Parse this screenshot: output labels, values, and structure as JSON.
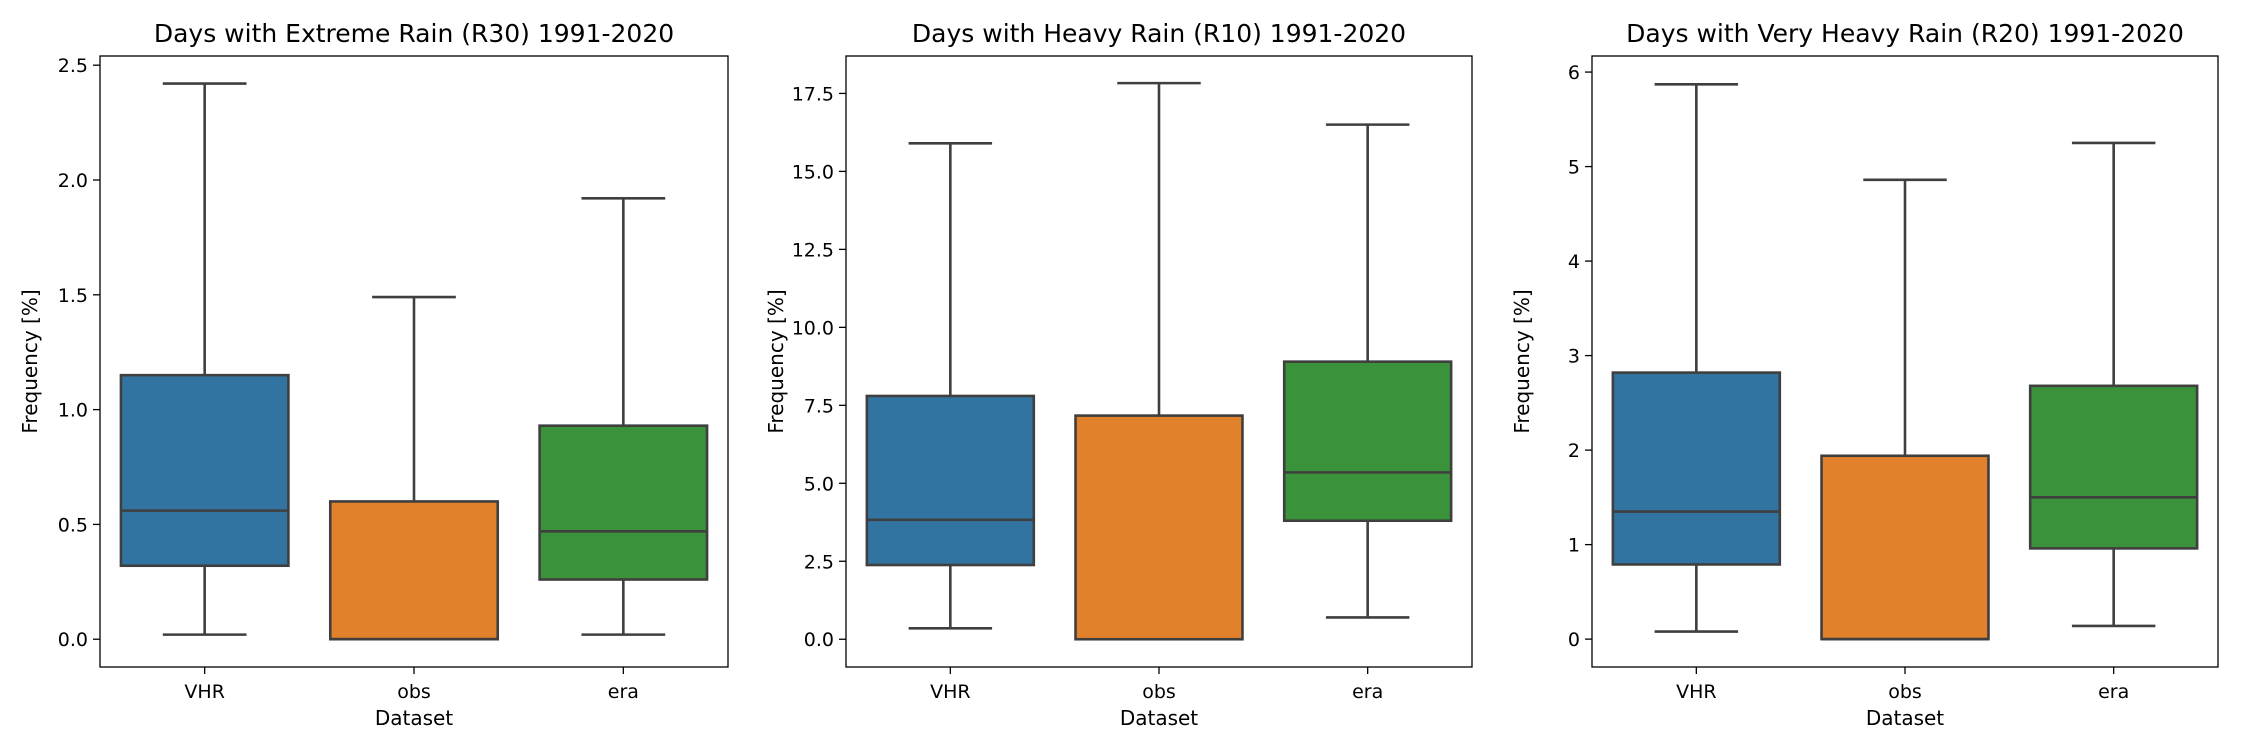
{
  "chart_data": [
    {
      "type": "box",
      "title": "Days with Extreme Rain (R30) 1991-2020",
      "xlabel": "Dataset",
      "ylabel": "Frequency [%]",
      "categories": [
        "VHR",
        "obs",
        "era"
      ],
      "colors": [
        "#3274a1",
        "#e1812c",
        "#3a923a"
      ],
      "ylim": [
        -0.121,
        2.54
      ],
      "yticks": [
        0.0,
        0.5,
        1.0,
        1.5,
        2.0,
        2.5
      ],
      "ytick_labels": [
        "0.0",
        "0.5",
        "1.0",
        "1.5",
        "2.0",
        "2.5"
      ],
      "boxes": [
        {
          "whislo": 0.02,
          "q1": 0.32,
          "med": 0.56,
          "q3": 1.15,
          "whishi": 2.42
        },
        {
          "whislo": 0.0,
          "q1": 0.0,
          "med": 0.0,
          "q3": 0.6,
          "whishi": 1.49
        },
        {
          "whislo": 0.02,
          "q1": 0.26,
          "med": 0.47,
          "q3": 0.93,
          "whishi": 1.92
        }
      ]
    },
    {
      "type": "box",
      "title": "Days with Heavy Rain (R10) 1991-2020",
      "xlabel": "Dataset",
      "ylabel": "Frequency [%]",
      "categories": [
        "VHR",
        "obs",
        "era"
      ],
      "colors": [
        "#3274a1",
        "#e1812c",
        "#3a923a"
      ],
      "ylim": [
        -0.89,
        18.7
      ],
      "yticks": [
        0.0,
        2.5,
        5.0,
        7.5,
        10.0,
        12.5,
        15.0,
        17.5
      ],
      "ytick_labels": [
        "0.0",
        "2.5",
        "5.0",
        "7.5",
        "10.0",
        "12.5",
        "15.0",
        "17.5"
      ],
      "boxes": [
        {
          "whislo": 0.35,
          "q1": 2.38,
          "med": 3.83,
          "q3": 7.8,
          "whishi": 15.9
        },
        {
          "whislo": 0.0,
          "q1": 0.0,
          "med": 0.0,
          "q3": 7.17,
          "whishi": 17.83
        },
        {
          "whislo": 0.7,
          "q1": 3.8,
          "med": 5.35,
          "q3": 8.9,
          "whishi": 16.5
        }
      ]
    },
    {
      "type": "box",
      "title": "Days with Very Heavy Rain (R20) 1991-2020",
      "xlabel": "Dataset",
      "ylabel": "Frequency [%]",
      "categories": [
        "VHR",
        "obs",
        "era"
      ],
      "colors": [
        "#3274a1",
        "#e1812c",
        "#3a923a"
      ],
      "ylim": [
        -0.295,
        6.17
      ],
      "yticks": [
        0,
        1,
        2,
        3,
        4,
        5,
        6
      ],
      "ytick_labels": [
        "0",
        "1",
        "2",
        "3",
        "4",
        "5",
        "6"
      ],
      "boxes": [
        {
          "whislo": 0.08,
          "q1": 0.79,
          "med": 1.35,
          "q3": 2.82,
          "whishi": 5.87
        },
        {
          "whislo": 0.0,
          "q1": 0.0,
          "med": 0.0,
          "q3": 1.94,
          "whishi": 4.86
        },
        {
          "whislo": 0.14,
          "q1": 0.96,
          "med": 1.5,
          "q3": 2.68,
          "whishi": 5.25
        }
      ]
    }
  ]
}
